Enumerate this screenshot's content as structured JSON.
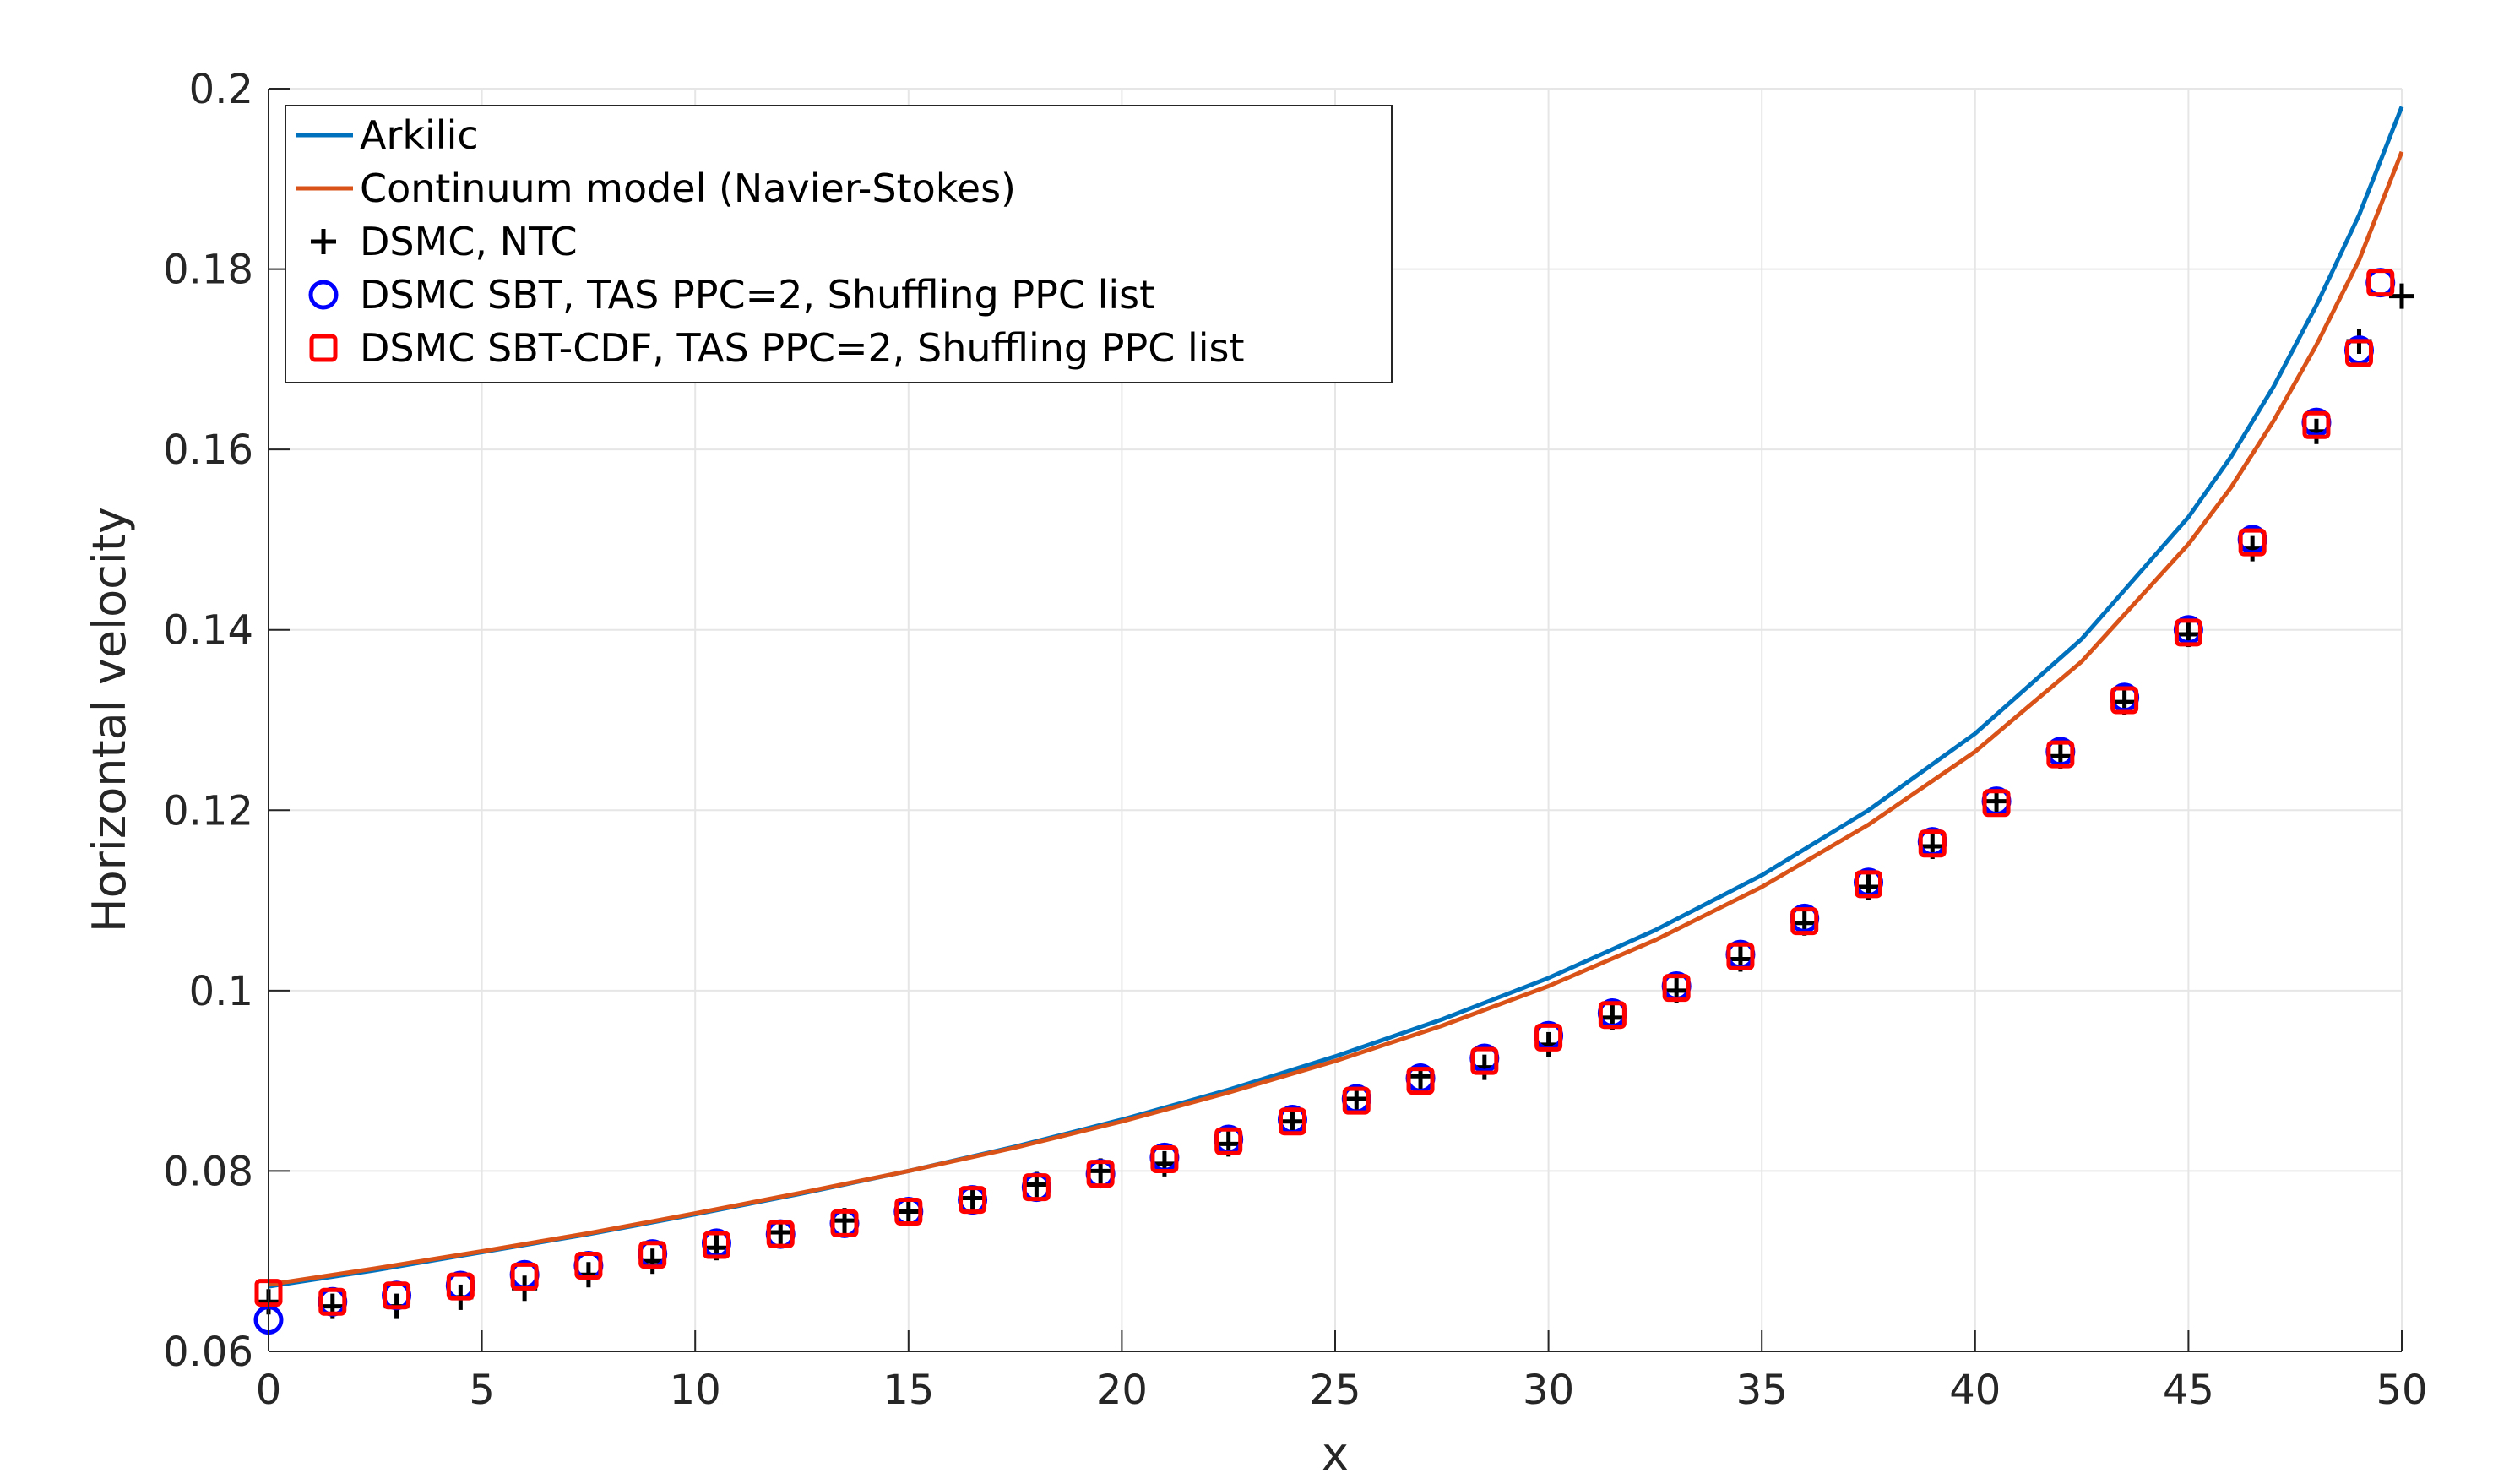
{
  "chart_data": {
    "type": "line",
    "title": "",
    "xlabel": "x",
    "ylabel": "Horizontal velocity",
    "xlim": [
      0,
      50
    ],
    "ylim": [
      0.06,
      0.2
    ],
    "xticks": [
      0,
      5,
      10,
      15,
      20,
      25,
      30,
      35,
      40,
      45,
      50
    ],
    "yticks": [
      0.06,
      0.08,
      0.1,
      0.12,
      0.14,
      0.16,
      0.18,
      0.2
    ],
    "xtick_labels": [
      "0",
      "5",
      "10",
      "15",
      "20",
      "25",
      "30",
      "35",
      "40",
      "45",
      "50"
    ],
    "ytick_labels": [
      "0.06",
      "0.08",
      "0.1",
      "0.12",
      "0.14",
      "0.16",
      "0.18",
      "0.2"
    ],
    "grid": true,
    "legend_position": "top-left",
    "series": [
      {
        "name": "Arkilic",
        "style": "line",
        "color": "#0072BD",
        "x": [
          0,
          2.5,
          5,
          7.5,
          10,
          12.5,
          15,
          17.5,
          20,
          22.5,
          25,
          27.5,
          30,
          32.5,
          35,
          37.5,
          40,
          42.5,
          45,
          46,
          47,
          48,
          49,
          50
        ],
        "y": [
          0.0672,
          0.069,
          0.071,
          0.073,
          0.0752,
          0.0775,
          0.08,
          0.0827,
          0.0857,
          0.089,
          0.0927,
          0.0968,
          0.1014,
          0.1067,
          0.1128,
          0.12,
          0.1285,
          0.139,
          0.1525,
          0.1592,
          0.167,
          0.176,
          0.186,
          0.198
        ]
      },
      {
        "name": "Continuum model (Navier-Stokes)",
        "style": "line",
        "color": "#D95319",
        "x": [
          0,
          2.5,
          5,
          7.5,
          10,
          12.5,
          15,
          17.5,
          20,
          22.5,
          25,
          27.5,
          30,
          32.5,
          35,
          37.5,
          40,
          42.5,
          45,
          46,
          47,
          48,
          49,
          50
        ],
        "y": [
          0.0674,
          0.0692,
          0.0711,
          0.0731,
          0.0753,
          0.0776,
          0.08,
          0.0826,
          0.0855,
          0.0887,
          0.0922,
          0.0961,
          0.1005,
          0.1056,
          0.1115,
          0.1184,
          0.1265,
          0.1365,
          0.1495,
          0.1558,
          0.1632,
          0.1716,
          0.181,
          0.193
        ]
      },
      {
        "name": "DSMC, NTC",
        "style": "marker",
        "marker": "plus",
        "color": "#000000",
        "x": [
          0,
          1.5,
          3,
          4.5,
          6,
          7.5,
          9,
          10.5,
          12,
          13.5,
          15,
          16.5,
          18,
          19.5,
          21,
          22.5,
          24,
          25.5,
          27,
          28.5,
          30,
          31.5,
          33,
          34.5,
          36,
          37.5,
          39,
          40.5,
          42,
          43.5,
          45,
          46.5,
          48,
          49,
          50
        ],
        "y": [
          0.0655,
          0.065,
          0.065,
          0.066,
          0.067,
          0.0685,
          0.07,
          0.0715,
          0.0732,
          0.0745,
          0.0755,
          0.077,
          0.0785,
          0.08,
          0.0808,
          0.083,
          0.0855,
          0.088,
          0.0905,
          0.0915,
          0.094,
          0.097,
          0.1,
          0.1035,
          0.1075,
          0.1115,
          0.116,
          0.121,
          0.126,
          0.132,
          0.1395,
          0.149,
          0.162,
          0.172,
          0.177
        ]
      },
      {
        "name": "DSMC SBT, TAS PPC=2, Shuffling PPC list",
        "style": "marker",
        "marker": "circle",
        "color": "#0000FF",
        "x": [
          0,
          1.5,
          3,
          4.5,
          6,
          7.5,
          9,
          10.5,
          12,
          13.5,
          15,
          16.5,
          18,
          19.5,
          21,
          22.5,
          24,
          25.5,
          27,
          28.5,
          30,
          31.5,
          33,
          34.5,
          36,
          37.5,
          39,
          40.5,
          42,
          43.5,
          45,
          46.5,
          48,
          49,
          49.5
        ],
        "y": [
          0.0635,
          0.0655,
          0.0662,
          0.0673,
          0.0685,
          0.0695,
          0.0708,
          0.072,
          0.073,
          0.0742,
          0.0755,
          0.0768,
          0.0782,
          0.0797,
          0.0815,
          0.0835,
          0.0857,
          0.088,
          0.0903,
          0.0925,
          0.095,
          0.0975,
          0.1005,
          0.104,
          0.108,
          0.112,
          0.1165,
          0.121,
          0.1265,
          0.1325,
          0.14,
          0.15,
          0.163,
          0.171,
          0.1785
        ]
      },
      {
        "name": "DSMC SBT-CDF, TAS PPC=2, Shuffling PPC list",
        "style": "marker",
        "marker": "square",
        "color": "#FF0000",
        "x": [
          0,
          1.5,
          3,
          4.5,
          6,
          7.5,
          9,
          10.5,
          12,
          13.5,
          15,
          16.5,
          18,
          19.5,
          21,
          22.5,
          24,
          25.5,
          27,
          28.5,
          30,
          31.5,
          33,
          34.5,
          36,
          37.5,
          39,
          40.5,
          42,
          43.5,
          45,
          46.5,
          48,
          49,
          49.5
        ],
        "y": [
          0.0665,
          0.0655,
          0.0662,
          0.0672,
          0.0683,
          0.0695,
          0.0707,
          0.0718,
          0.073,
          0.0742,
          0.0755,
          0.0768,
          0.0782,
          0.0797,
          0.0813,
          0.0833,
          0.0855,
          0.0878,
          0.09,
          0.0922,
          0.0948,
          0.0973,
          0.1003,
          0.1038,
          0.1077,
          0.1118,
          0.1163,
          0.1208,
          0.1262,
          0.1322,
          0.1397,
          0.1497,
          0.1627,
          0.1707,
          0.1785
        ]
      }
    ]
  }
}
